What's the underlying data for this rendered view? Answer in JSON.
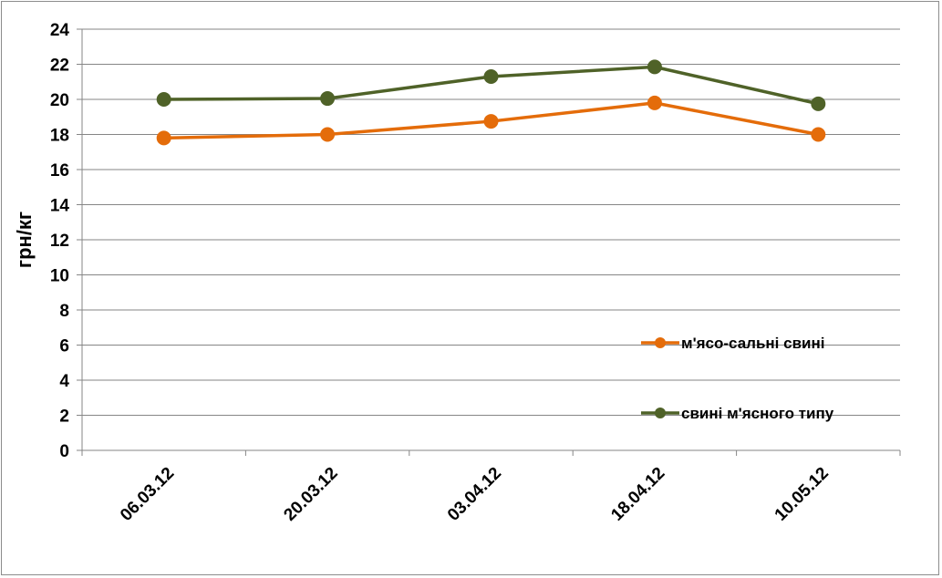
{
  "chart_data": {
    "type": "line",
    "ylabel": "грн/кг",
    "xlabel": "",
    "ylim": [
      0,
      24
    ],
    "y_ticks": [
      "0",
      "2",
      "4",
      "6",
      "8",
      "10",
      "12",
      "14",
      "16",
      "18",
      "20",
      "22",
      "24"
    ],
    "categories": [
      "06.03.12",
      "20.03.12",
      "03.04.12",
      "18.04.12",
      "10.05.12"
    ],
    "grid": "horizontal",
    "legend_position": "right",
    "series": [
      {
        "name": "м'ясо-сальні свині",
        "values": [
          17.8,
          18.0,
          18.75,
          19.8,
          18.0
        ],
        "color": "#e46c0a"
      },
      {
        "name": "свині м'ясного типу",
        "values": [
          20.0,
          20.05,
          21.3,
          21.85,
          19.75
        ],
        "color": "#4f6228"
      }
    ]
  }
}
